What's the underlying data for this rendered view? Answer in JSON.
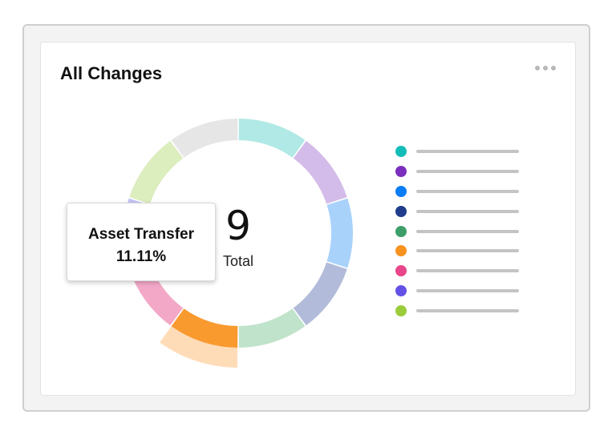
{
  "card": {
    "title": "All Changes",
    "menu_icon": "more-horizontal-icon"
  },
  "chart_data": {
    "type": "pie",
    "variant": "donut",
    "center_value": "9",
    "center_label": "Total",
    "categories": [
      "",
      "",
      "",
      "",
      "",
      "",
      "",
      "",
      "",
      ""
    ],
    "values": [
      1,
      1,
      1,
      1,
      1,
      1,
      1,
      1,
      1,
      1
    ],
    "colors": [
      "#b0e9e6",
      "#d3bce9",
      "#a9d2fb",
      "#b2bbd9",
      "#c0e3cb",
      "#f99a2f",
      "#f3a8c8",
      "#c5c4f6",
      "#dcedbe",
      "#e6e6e6"
    ],
    "highlighted_index": 5,
    "highlight_outer_color": "#ffdcb8",
    "legend_placement": "right"
  },
  "legend": {
    "items": [
      {
        "color": "#14bcb8"
      },
      {
        "color": "#7b2fbe"
      },
      {
        "color": "#0a7cf5"
      },
      {
        "color": "#1f3d8c"
      },
      {
        "color": "#3d9e6a"
      },
      {
        "color": "#f7931e"
      },
      {
        "color": "#e8468a"
      },
      {
        "color": "#6351e6"
      },
      {
        "color": "#9bcc3c"
      }
    ]
  },
  "tooltip": {
    "label": "Asset Transfer",
    "value": "11.11%"
  }
}
